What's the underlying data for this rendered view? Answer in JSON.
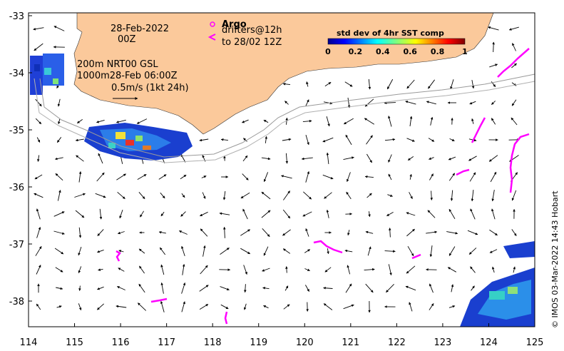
{
  "x_axis": {
    "ticks": [
      "114",
      "115",
      "116",
      "117",
      "118",
      "119",
      "120",
      "121",
      "122",
      "123",
      "124",
      "125"
    ]
  },
  "y_axis": {
    "ticks": [
      "-33",
      "-34",
      "-35",
      "-36",
      "-37",
      "-38"
    ]
  },
  "annotations": {
    "date": "28-Feb-2022",
    "time": "00Z",
    "argo_label": "Argo",
    "drifters_line1": "drifters@12h",
    "drifters_line2": "to 28/02 12Z",
    "depth_line1": "200m  NRT00 GSL",
    "depth_line2": "1000m28-Feb 06:00Z",
    "speed_ref": "0.5m/s (1kt 24h)"
  },
  "colorbar": {
    "title": "std dev of 4hr SST comp",
    "ticks": [
      "0",
      "0.2",
      "0.4",
      "0.6",
      "0.8",
      "1"
    ]
  },
  "credit": "© IMOS 03-Mar-2022 14:43 Hobart",
  "colors": {
    "land": "#fbc99b",
    "argo": "#ff00ff",
    "drifter": "#ff00ff",
    "contour": "#999999"
  }
}
